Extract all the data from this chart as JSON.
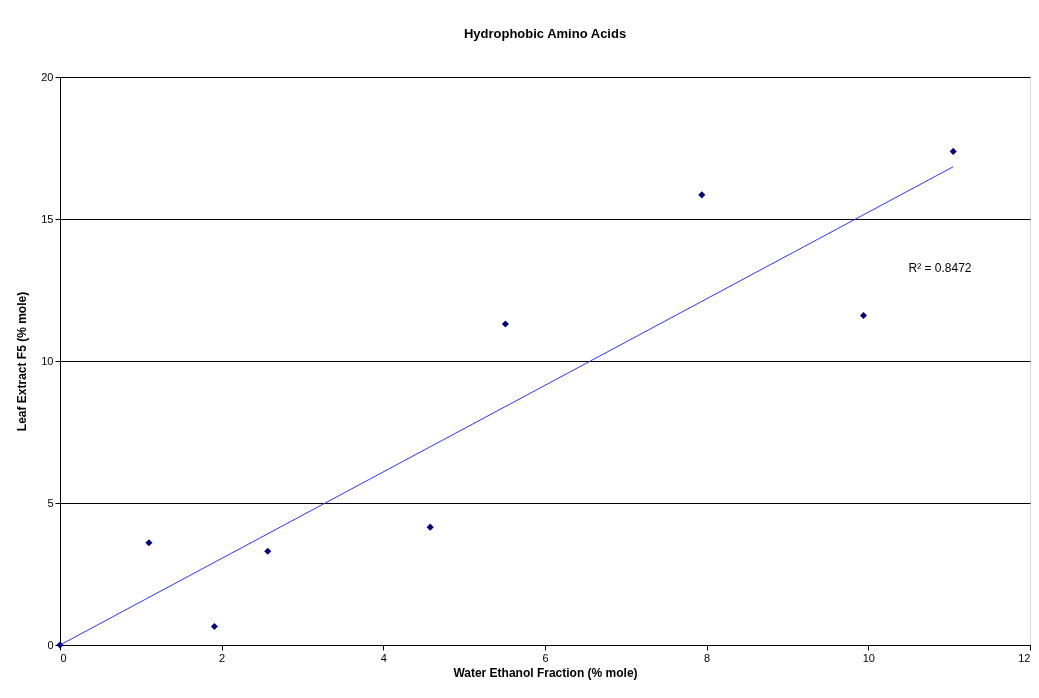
{
  "chart_data": {
    "type": "scatter",
    "title": "Hydrophobic Amino Acids",
    "xlabel": "Water Ethanol Fraction (% mole)",
    "ylabel": "Leaf Extract F5 (% mole)",
    "series": [
      {
        "color": "#000080",
        "marker": "diamond",
        "x": [
          0,
          1.1,
          1.91,
          2.57,
          4.58,
          5.51,
          7.94,
          9.94,
          11.05
        ],
        "values": [
          0,
          3.6,
          0.65,
          3.3,
          4.15,
          11.3,
          15.85,
          11.6,
          17.38
        ]
      },
      {
        "type": "line",
        "color": "#3333ff",
        "line_style": "solid",
        "x": [
          0,
          11.05
        ],
        "values": [
          0,
          16.84
        ]
      }
    ],
    "annotations": [
      "R² = 0.8472"
    ],
    "xlim": [
      0,
      12
    ],
    "xticks": [
      0,
      2,
      4,
      6,
      8,
      10,
      12
    ],
    "ylim": [
      0,
      20
    ],
    "yticks": [
      0,
      5,
      10,
      15,
      20
    ],
    "grid": "y"
  }
}
